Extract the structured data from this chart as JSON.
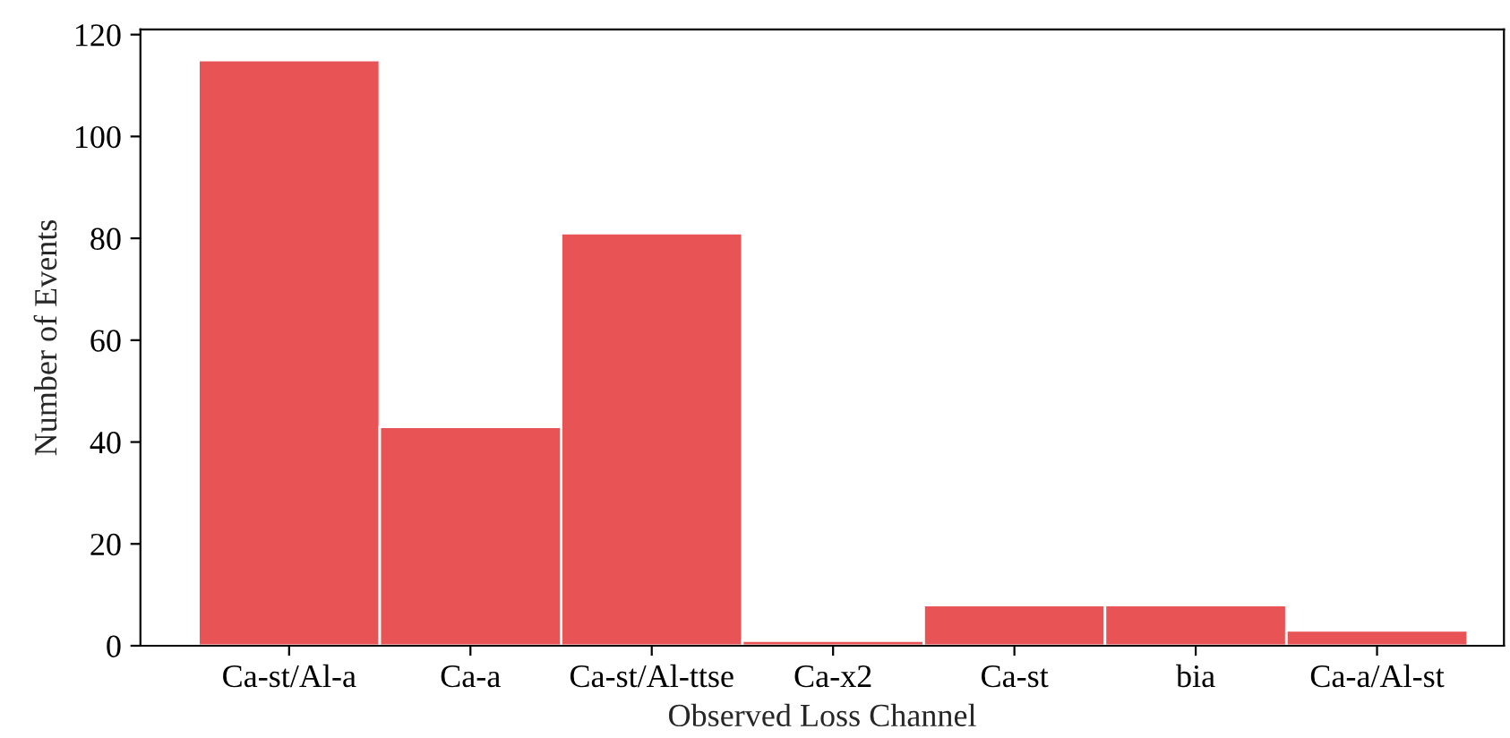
{
  "chart_data": {
    "type": "bar",
    "xlabel": "Observed Loss Channel",
    "ylabel": "Number of Events",
    "categories": [
      "Ca-st/Al-a",
      "Ca-a",
      "Ca-st/Al-ttse",
      "Ca-x2",
      "Ca-st",
      "bia",
      "Ca-a/Al-st"
    ],
    "values": [
      115,
      43,
      81,
      1,
      8,
      8,
      3
    ],
    "color": "#e85355",
    "ylim": [
      0,
      121
    ],
    "yticks": [
      0,
      20,
      40,
      60,
      80,
      100,
      120
    ],
    "grid": false
  }
}
